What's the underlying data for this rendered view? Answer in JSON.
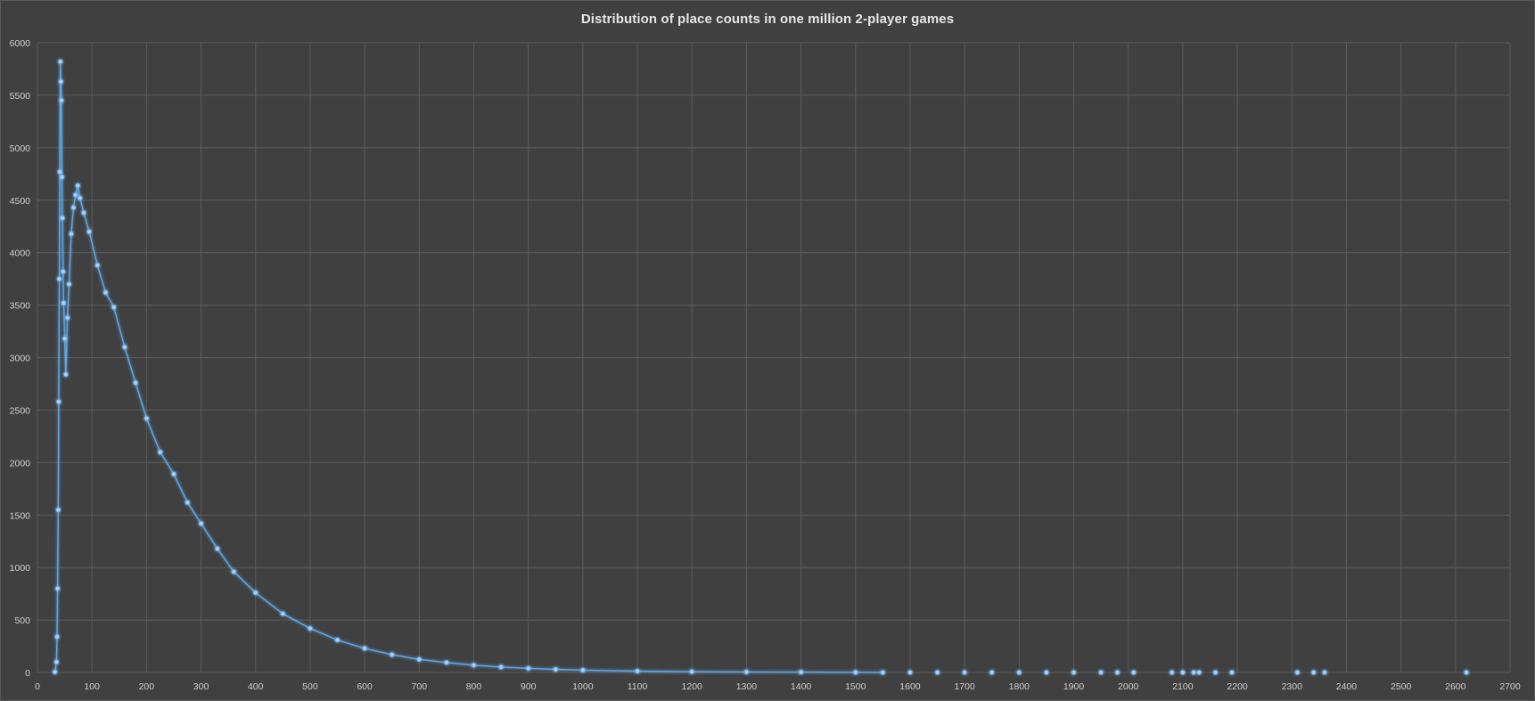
{
  "chart_data": {
    "type": "scatter",
    "title": "Distribution of place counts in one million 2-player games",
    "xlabel": "",
    "ylabel": "",
    "xlim": [
      0,
      2700
    ],
    "ylim": [
      0,
      6000
    ],
    "x_ticks": [
      0,
      100,
      200,
      300,
      400,
      500,
      600,
      700,
      800,
      900,
      1000,
      1100,
      1200,
      1300,
      1400,
      1500,
      1600,
      1700,
      1800,
      1900,
      2000,
      2100,
      2200,
      2300,
      2400,
      2500,
      2600,
      2700
    ],
    "y_ticks": [
      0,
      500,
      1000,
      1500,
      2000,
      2500,
      3000,
      3500,
      4000,
      4500,
      5000,
      5500,
      6000
    ],
    "grid": true,
    "legend": "none",
    "series_color": "#5fa8e8",
    "marker": "circle",
    "connected": true,
    "sample_points": [
      {
        "x": 32,
        "y": 5
      },
      {
        "x": 35,
        "y": 100
      },
      {
        "x": 36,
        "y": 340
      },
      {
        "x": 37,
        "y": 800
      },
      {
        "x": 38,
        "y": 1550
      },
      {
        "x": 39,
        "y": 2580
      },
      {
        "x": 40,
        "y": 3750
      },
      {
        "x": 41,
        "y": 4770
      },
      {
        "x": 42,
        "y": 5820
      },
      {
        "x": 43,
        "y": 5630
      },
      {
        "x": 44,
        "y": 5450
      },
      {
        "x": 45,
        "y": 4720
      },
      {
        "x": 46,
        "y": 4330
      },
      {
        "x": 47,
        "y": 3820
      },
      {
        "x": 48,
        "y": 3520
      },
      {
        "x": 50,
        "y": 3180
      },
      {
        "x": 52,
        "y": 2840
      },
      {
        "x": 55,
        "y": 3380
      },
      {
        "x": 58,
        "y": 3700
      },
      {
        "x": 62,
        "y": 4180
      },
      {
        "x": 66,
        "y": 4430
      },
      {
        "x": 70,
        "y": 4550
      },
      {
        "x": 74,
        "y": 4640
      },
      {
        "x": 78,
        "y": 4520
      },
      {
        "x": 85,
        "y": 4380
      },
      {
        "x": 95,
        "y": 4200
      },
      {
        "x": 110,
        "y": 3880
      },
      {
        "x": 125,
        "y": 3620
      },
      {
        "x": 140,
        "y": 3480
      },
      {
        "x": 160,
        "y": 3100
      },
      {
        "x": 180,
        "y": 2760
      },
      {
        "x": 200,
        "y": 2420
      },
      {
        "x": 225,
        "y": 2100
      },
      {
        "x": 250,
        "y": 1890
      },
      {
        "x": 275,
        "y": 1620
      },
      {
        "x": 300,
        "y": 1420
      },
      {
        "x": 330,
        "y": 1180
      },
      {
        "x": 360,
        "y": 960
      },
      {
        "x": 400,
        "y": 760
      },
      {
        "x": 450,
        "y": 560
      },
      {
        "x": 500,
        "y": 420
      },
      {
        "x": 550,
        "y": 310
      },
      {
        "x": 600,
        "y": 230
      },
      {
        "x": 650,
        "y": 170
      },
      {
        "x": 700,
        "y": 125
      },
      {
        "x": 750,
        "y": 95
      },
      {
        "x": 800,
        "y": 70
      },
      {
        "x": 850,
        "y": 52
      },
      {
        "x": 900,
        "y": 40
      },
      {
        "x": 950,
        "y": 30
      },
      {
        "x": 1000,
        "y": 22
      },
      {
        "x": 1100,
        "y": 13
      },
      {
        "x": 1200,
        "y": 8
      },
      {
        "x": 1300,
        "y": 5
      },
      {
        "x": 1400,
        "y": 3
      },
      {
        "x": 1500,
        "y": 2
      },
      {
        "x": 1550,
        "y": 1
      },
      {
        "x": 1600,
        "y": 1
      },
      {
        "x": 1650,
        "y": 1
      },
      {
        "x": 1700,
        "y": 1
      },
      {
        "x": 1750,
        "y": 1
      },
      {
        "x": 1800,
        "y": 1
      },
      {
        "x": 1850,
        "y": 1
      },
      {
        "x": 1900,
        "y": 1
      },
      {
        "x": 1950,
        "y": 1
      },
      {
        "x": 1980,
        "y": 1
      },
      {
        "x": 2010,
        "y": 1
      },
      {
        "x": 2080,
        "y": 1
      },
      {
        "x": 2100,
        "y": 1
      },
      {
        "x": 2120,
        "y": 1
      },
      {
        "x": 2130,
        "y": 1
      },
      {
        "x": 2160,
        "y": 1
      },
      {
        "x": 2190,
        "y": 1
      },
      {
        "x": 2310,
        "y": 1
      },
      {
        "x": 2340,
        "y": 1
      },
      {
        "x": 2360,
        "y": 1
      },
      {
        "x": 2620,
        "y": 1
      }
    ]
  }
}
